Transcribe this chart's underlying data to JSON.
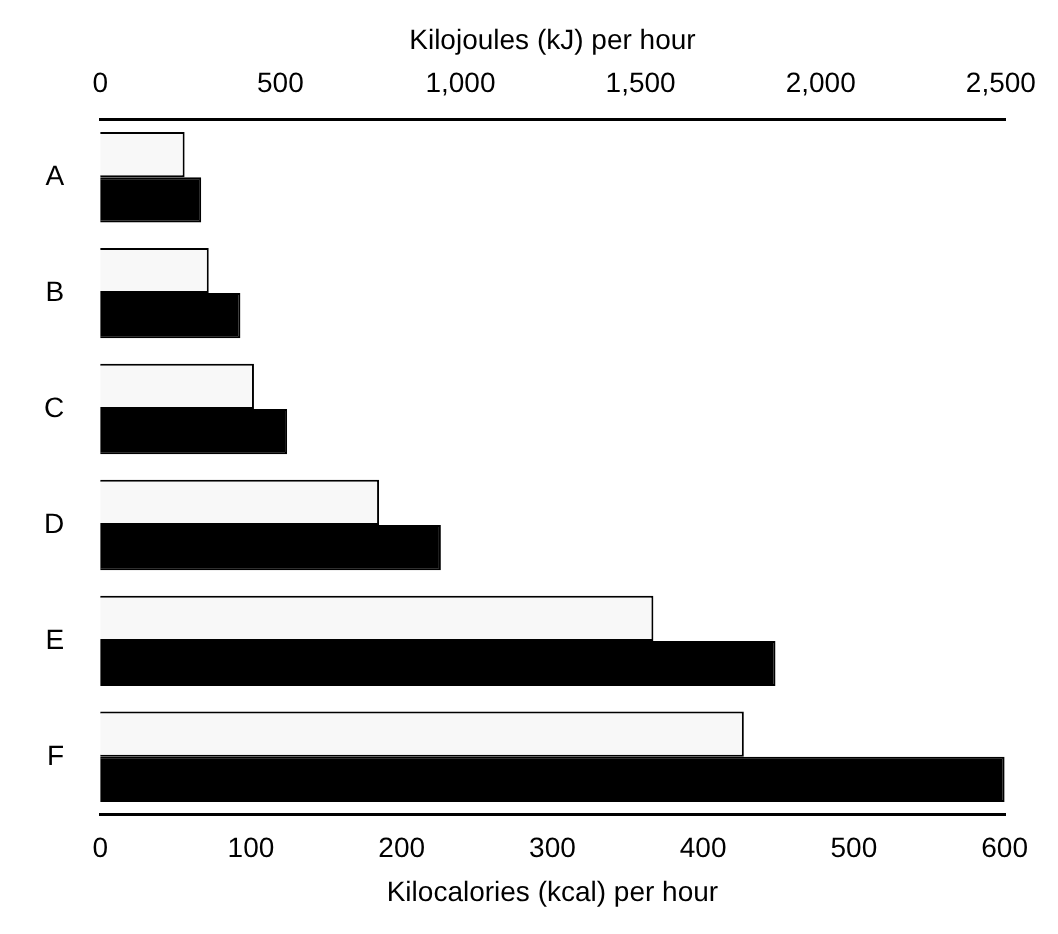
{
  "chart_data": {
    "type": "bar",
    "orientation": "horizontal",
    "categories": [
      "A",
      "B",
      "C",
      "D",
      "E",
      "F"
    ],
    "series": [
      {
        "color": "#f8f8f8",
        "values": [
          56,
          72,
          102,
          185,
          367,
          427
        ]
      },
      {
        "color": "#000000",
        "values": [
          67,
          93,
          124,
          226,
          448,
          600
        ]
      }
    ],
    "xlabel": "Kilocalories (kcal) per hour",
    "xlim": [
      0,
      600
    ],
    "xticks": [
      0,
      100,
      200,
      300,
      400,
      500,
      600
    ],
    "x2label": "Kilojoules (kJ) per hour",
    "x2lim": [
      0,
      2510.4
    ],
    "x2ticks": [
      0,
      500,
      {
        "value": 1000,
        "label": "1,000"
      },
      {
        "value": 1500,
        "label": "1,500"
      },
      {
        "value": 2000,
        "label": "2,000"
      },
      {
        "value": 2500,
        "label": "2,500"
      }
    ],
    "grid": false,
    "legend": false
  }
}
